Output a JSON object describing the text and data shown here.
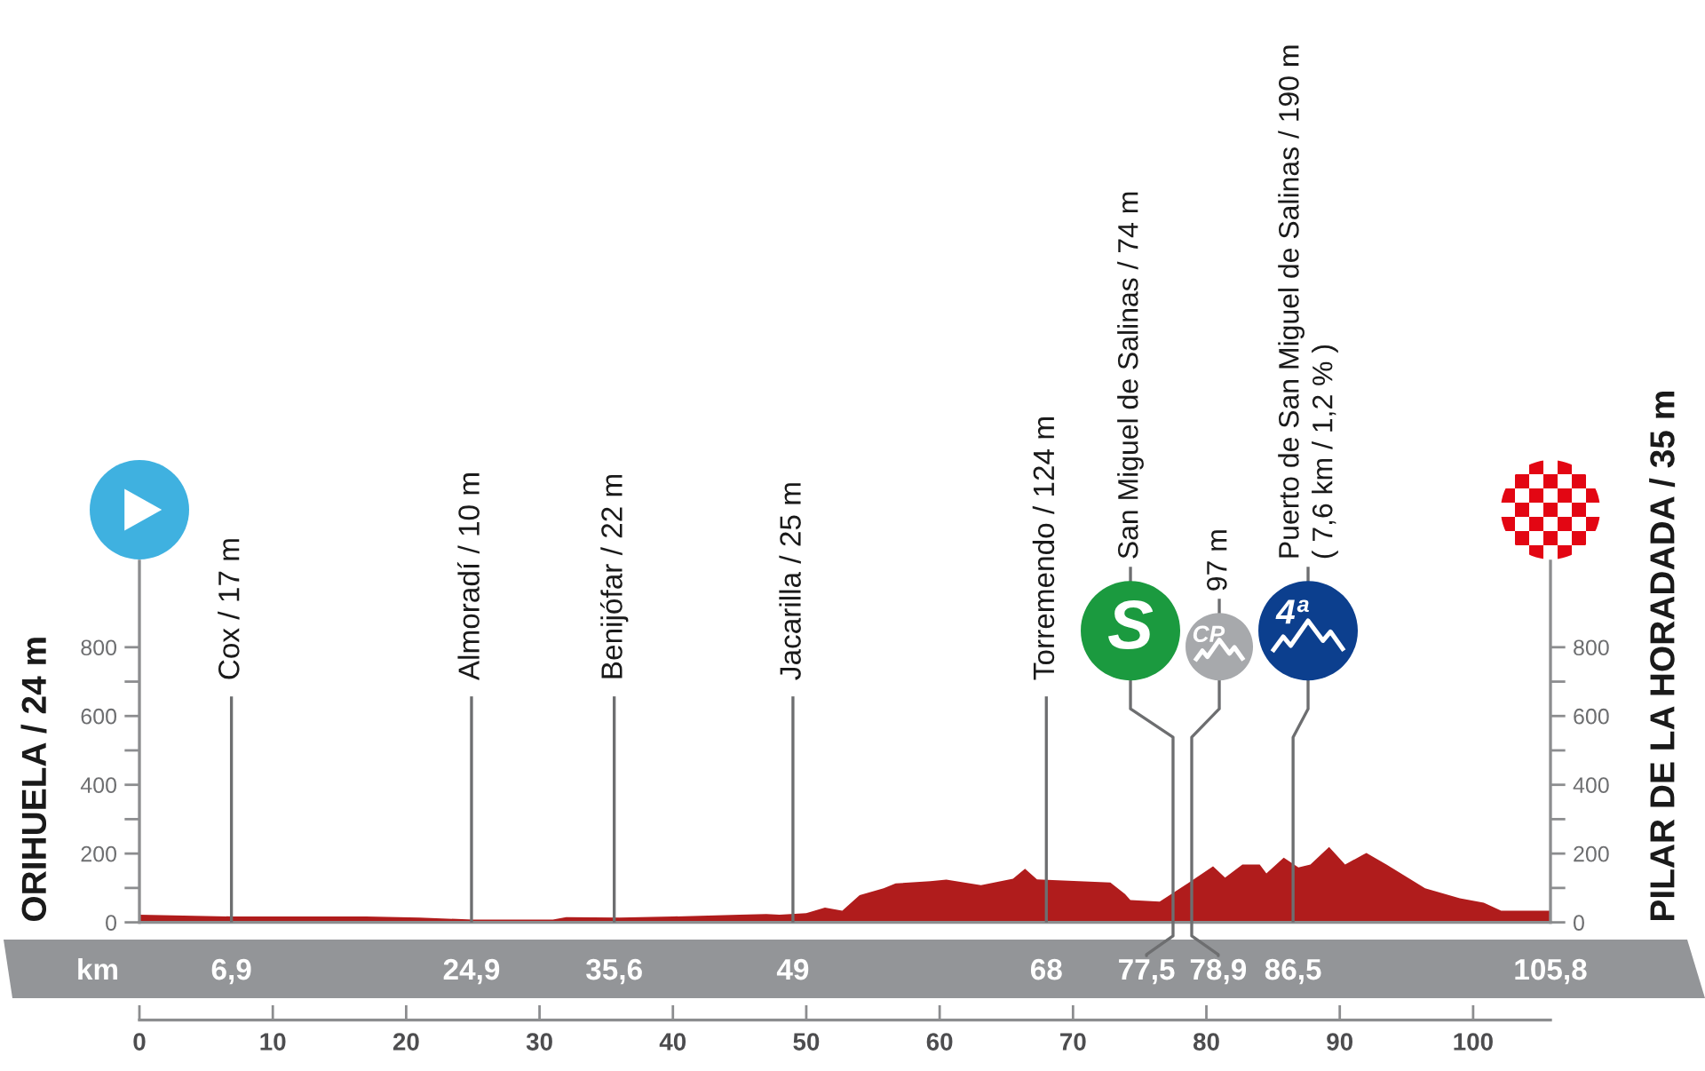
{
  "chart_data": {
    "type": "area",
    "ylabel": "ORIHUELA / 24 m",
    "y2label": "PILAR DE LA HORADADA / 35 m",
    "x2label": "km",
    "xlim": [
      0,
      105.8
    ],
    "xticks": [
      0,
      10,
      20,
      30,
      40,
      50,
      60,
      70,
      80,
      90,
      100
    ],
    "x2lim": [
      0,
      105.8
    ],
    "x2ticks": [
      {
        "value": 6.9,
        "label": "6,9"
      },
      {
        "value": 24.9,
        "label": "24,9"
      },
      {
        "value": 35.6,
        "label": "35,6"
      },
      49,
      68,
      {
        "value": 86.5,
        "label": "86,5"
      },
      {
        "value": 105.8,
        "label": "105,8"
      }
    ],
    "ylim": [
      0,
      1050
    ],
    "yticks": [
      0,
      {
        "value": 100,
        "label": null
      },
      200,
      {
        "value": 300,
        "label": null
      },
      400,
      {
        "value": 500,
        "label": null
      },
      600,
      {
        "value": 700,
        "label": null
      },
      800
    ],
    "y2lim": [
      0,
      1050
    ],
    "y2ticks": [
      0,
      {
        "value": 100,
        "label": null
      },
      200,
      {
        "value": 300,
        "label": null
      },
      400,
      {
        "value": 500,
        "label": null
      },
      600,
      {
        "value": 700,
        "label": null
      },
      800
    ],
    "series": [
      {
        "color": "#b01c1c",
        "x": [
          0,
          7,
          17,
          21,
          25,
          31,
          32,
          36,
          40,
          45,
          47,
          48,
          50,
          51.4,
          52.7,
          54,
          55.8,
          56.7,
          59.3,
          60.5,
          63.1,
          65.5,
          66.4,
          67.3,
          72.8,
          73.9,
          74.3,
          76.5,
          78.7,
          80.5,
          81.4,
          82.7,
          84,
          84.5,
          85.8,
          86.9,
          87.8,
          89.2,
          90.4,
          91.8,
          92,
          93.5,
          96.4,
          99,
          100.8,
          102.1,
          105.8
        ],
        "values": [
          22,
          17,
          17,
          14,
          8,
          8,
          15,
          14,
          17,
          22,
          24,
          22,
          27,
          43,
          34,
          79,
          99,
          113,
          120,
          124,
          108,
          127,
          156,
          125,
          116,
          82,
          65,
          60,
          116,
          163,
          130,
          168,
          168,
          142,
          188,
          160,
          168,
          219,
          168,
          198,
          202,
          168,
          99,
          70,
          57,
          34,
          34
        ]
      }
    ],
    "ref_lines": [
      {
        "axis": "x",
        "value": 6.9,
        "label": "Cox / 17 m",
        "color": "#6d6e70"
      },
      {
        "axis": "x",
        "value": 24.9,
        "label": "Almoradí / 10 m",
        "color": "#6d6e70"
      },
      {
        "axis": "x",
        "value": 35.6,
        "label": "Benijófar / 22 m",
        "color": "#6d6e70"
      },
      {
        "axis": "x",
        "value": 49,
        "label": "Jacarilla / 25 m",
        "color": "#6d6e70"
      },
      {
        "axis": "x",
        "value": 68,
        "label": "Torremendo / 124 m",
        "color": "#6d6e70"
      },
      {
        "axis": "x",
        "value": 77.5,
        "label": "San Miguel de Salinas / 74 m",
        "color": "#6d6e70"
      },
      {
        "axis": "x",
        "value": 78.9,
        "label": "97 m",
        "color": "#6d6e70"
      },
      {
        "axis": "x",
        "value": 86.5,
        "label": "Puerto de San Miguel de Salinas / 190 m\n( 7,6 km / 1,2 % )",
        "color": "#6d6e70"
      }
    ],
    "annotations": [
      "S",
      "CP",
      "4ª",
      {
        "text": "77,5",
        "x": 77.5,
        "y": 0
      },
      {
        "text": "78,9",
        "x": 78.9,
        "y": 0
      }
    ]
  }
}
